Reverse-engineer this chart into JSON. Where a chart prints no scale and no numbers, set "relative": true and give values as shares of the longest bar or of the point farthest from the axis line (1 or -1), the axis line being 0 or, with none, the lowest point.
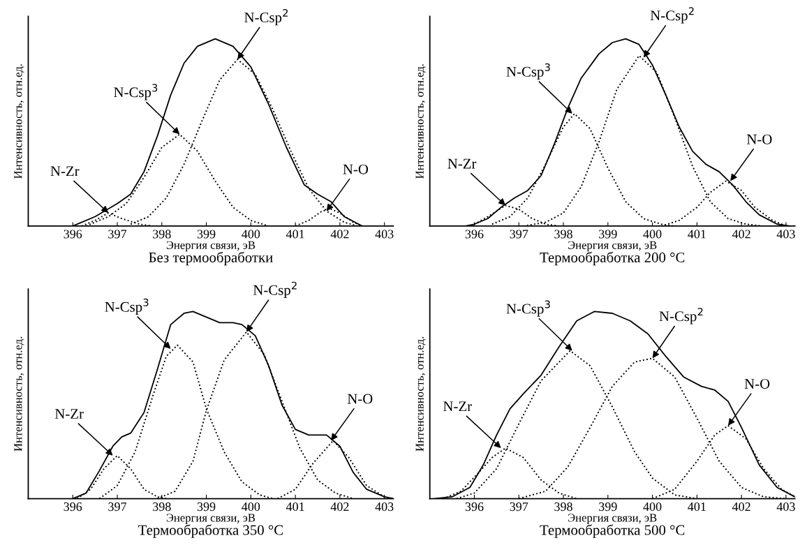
{
  "chart_data": [
    {
      "type": "line",
      "title": "Без термообработки",
      "xlabel": "Энергия связи, эВ",
      "ylabel": "Интенсивность, отн.ед.",
      "relative": true,
      "xlim": [
        395,
        403.2
      ],
      "xticks": [
        396,
        397,
        398,
        399,
        400,
        401,
        402,
        403
      ],
      "tick_labels": "x",
      "grid": false,
      "marker": "none",
      "series": [
        {
          "color": "#000000",
          "line_style": "solid",
          "x": [
            396.0,
            396.5,
            397.0,
            397.3,
            397.6,
            397.9,
            398.2,
            398.5,
            398.8,
            399.2,
            399.6,
            400.0,
            400.4,
            400.8,
            401.2,
            401.5,
            401.8,
            402.1,
            402.5
          ],
          "values": [
            0,
            0.05,
            0.12,
            0.17,
            0.29,
            0.48,
            0.7,
            0.87,
            0.96,
            1.0,
            0.96,
            0.85,
            0.65,
            0.42,
            0.22,
            0.17,
            0.13,
            0.05,
            0
          ]
        },
        {
          "color": "#000000",
          "line_style": "dotted",
          "x": [
            396.2,
            396.5,
            396.8,
            397.1,
            397.5,
            397.8
          ],
          "values": [
            0,
            0.03,
            0.07,
            0.04,
            0.01,
            0
          ]
        },
        {
          "color": "#000000",
          "line_style": "dotted",
          "x": [
            396.3,
            396.8,
            397.2,
            397.6,
            398.0,
            398.4,
            398.8,
            399.2,
            399.6,
            400.0,
            400.4
          ],
          "values": [
            0,
            0.05,
            0.12,
            0.26,
            0.42,
            0.49,
            0.4,
            0.24,
            0.1,
            0.03,
            0
          ]
        },
        {
          "color": "#000000",
          "line_style": "dotted",
          "x": [
            397.3,
            397.7,
            398.1,
            398.5,
            398.9,
            399.3,
            399.7,
            400.1,
            400.5,
            400.9,
            401.3,
            401.7,
            402.1,
            402.4
          ],
          "values": [
            0.01,
            0.05,
            0.15,
            0.33,
            0.56,
            0.78,
            0.89,
            0.81,
            0.62,
            0.4,
            0.2,
            0.08,
            0.02,
            0
          ]
        },
        {
          "color": "#000000",
          "line_style": "dotted",
          "x": [
            401.0,
            401.3,
            401.6,
            401.8,
            402.0,
            402.3,
            402.5
          ],
          "values": [
            0,
            0.03,
            0.08,
            0.09,
            0.07,
            0.02,
            0
          ]
        }
      ],
      "annotations": [
        {
          "text": "N-Zr",
          "x": 396.8,
          "y": 0.07
        },
        {
          "text": "N-Csp$^{3}$",
          "x": 398.4,
          "y": 0.49
        },
        {
          "text": "N-Csp$^{2}$",
          "x": 399.7,
          "y": 0.89
        },
        {
          "text": "N-O",
          "x": 401.7,
          "y": 0.08
        }
      ]
    },
    {
      "type": "line",
      "title": "Термообработка 200 °C",
      "xlabel": "Энергия связи, эВ",
      "ylabel": "Интенсивность, отн.ед.",
      "relative": true,
      "xlim": [
        395,
        403.2
      ],
      "xticks": [
        396,
        397,
        398,
        399,
        400,
        401,
        402,
        403
      ],
      "tick_labels": "x",
      "grid": false,
      "marker": "none",
      "series": [
        {
          "color": "#000000",
          "line_style": "solid",
          "x": [
            395.8,
            396.0,
            396.3,
            396.6,
            396.9,
            397.2,
            397.5,
            397.8,
            398.1,
            398.4,
            398.8,
            399.1,
            399.4,
            399.7,
            400.0,
            400.3,
            400.6,
            400.9,
            401.2,
            401.5,
            401.8,
            402.1,
            402.4,
            402.8,
            403.1
          ],
          "values": [
            0,
            0.01,
            0.04,
            0.1,
            0.15,
            0.19,
            0.27,
            0.44,
            0.63,
            0.79,
            0.92,
            0.98,
            1.0,
            0.97,
            0.86,
            0.7,
            0.53,
            0.4,
            0.33,
            0.29,
            0.22,
            0.13,
            0.06,
            0.01,
            0
          ]
        },
        {
          "color": "#000000",
          "line_style": "dotted",
          "x": [
            396.0,
            396.3,
            396.7,
            397.0,
            397.3,
            397.6,
            397.9
          ],
          "values": [
            0.01,
            0.05,
            0.11,
            0.09,
            0.04,
            0.01,
            0
          ]
        },
        {
          "color": "#000000",
          "line_style": "dotted",
          "x": [
            396.4,
            396.8,
            397.2,
            397.6,
            398.0,
            398.25,
            398.6,
            399.0,
            399.4,
            399.8,
            400.2,
            400.5
          ],
          "values": [
            0.01,
            0.05,
            0.15,
            0.33,
            0.53,
            0.6,
            0.52,
            0.31,
            0.13,
            0.04,
            0.01,
            0
          ]
        },
        {
          "color": "#000000",
          "line_style": "dotted",
          "x": [
            397.1,
            397.6,
            398.0,
            398.4,
            398.8,
            399.2,
            399.7,
            400.1,
            400.5,
            400.9,
            401.3,
            401.7,
            402.1,
            402.5
          ],
          "values": [
            0,
            0.02,
            0.07,
            0.21,
            0.45,
            0.73,
            0.91,
            0.82,
            0.58,
            0.32,
            0.13,
            0.04,
            0.01,
            0
          ]
        },
        {
          "color": "#000000",
          "line_style": "dotted",
          "x": [
            400.2,
            400.6,
            401.0,
            401.3,
            401.65,
            402.0,
            402.3,
            402.7,
            403.0
          ],
          "values": [
            0,
            0.03,
            0.1,
            0.18,
            0.24,
            0.19,
            0.1,
            0.03,
            0
          ]
        }
      ],
      "annotations": [
        {
          "text": "N-Zr",
          "x": 396.7,
          "y": 0.11
        },
        {
          "text": "N-Csp$^{3}$",
          "x": 398.2,
          "y": 0.6
        },
        {
          "text": "N-Csp$^{2}$",
          "x": 399.8,
          "y": 0.9
        },
        {
          "text": "N-O",
          "x": 401.75,
          "y": 0.24
        }
      ]
    },
    {
      "type": "line",
      "title": "Термообработка 350 °C",
      "xlabel": "Энергия связи, эВ",
      "ylabel": "Интенсивность, отн.ед.",
      "relative": true,
      "xlim": [
        395,
        403.2
      ],
      "xticks": [
        396,
        397,
        398,
        399,
        400,
        401,
        402,
        403
      ],
      "tick_labels": "x",
      "grid": false,
      "marker": "none",
      "series": [
        {
          "color": "#000000",
          "line_style": "solid",
          "x": [
            396.0,
            396.3,
            396.6,
            396.9,
            397.1,
            397.3,
            397.6,
            397.9,
            398.2,
            398.5,
            398.7,
            399.0,
            399.3,
            399.6,
            399.8,
            400.1,
            400.4,
            400.7,
            401.0,
            401.3,
            401.7,
            402.0,
            402.3,
            402.6,
            403.0,
            403.2
          ],
          "values": [
            0,
            0.03,
            0.15,
            0.28,
            0.33,
            0.35,
            0.46,
            0.69,
            0.93,
            0.99,
            1.0,
            0.97,
            0.94,
            0.94,
            0.93,
            0.87,
            0.71,
            0.5,
            0.37,
            0.34,
            0.34,
            0.28,
            0.14,
            0.05,
            0.01,
            0
          ]
        },
        {
          "color": "#000000",
          "line_style": "dotted",
          "x": [
            396.1,
            396.4,
            396.7,
            397.0,
            397.3,
            397.6,
            397.9,
            398.1
          ],
          "values": [
            0,
            0.05,
            0.16,
            0.23,
            0.16,
            0.05,
            0.01,
            0
          ]
        },
        {
          "color": "#000000",
          "line_style": "dotted",
          "x": [
            396.6,
            397.0,
            397.4,
            397.8,
            398.1,
            398.35,
            398.7,
            399.0,
            399.4,
            399.8,
            400.2,
            400.5
          ],
          "values": [
            0,
            0.07,
            0.25,
            0.55,
            0.76,
            0.82,
            0.73,
            0.48,
            0.25,
            0.09,
            0.02,
            0
          ]
        },
        {
          "color": "#000000",
          "line_style": "dotted",
          "x": [
            397.9,
            398.3,
            398.7,
            399.0,
            399.4,
            399.9,
            400.3,
            400.7,
            401.1,
            401.5,
            401.9,
            402.3
          ],
          "values": [
            0,
            0.04,
            0.2,
            0.47,
            0.74,
            0.89,
            0.77,
            0.52,
            0.27,
            0.1,
            0.03,
            0
          ]
        },
        {
          "color": "#000000",
          "line_style": "dotted",
          "x": [
            400.6,
            401.0,
            401.4,
            401.85,
            402.2,
            402.6,
            403.0,
            403.2
          ],
          "values": [
            0,
            0.05,
            0.19,
            0.31,
            0.22,
            0.07,
            0.01,
            0
          ]
        }
      ],
      "annotations": [
        {
          "text": "N-Zr",
          "x": 396.9,
          "y": 0.23
        },
        {
          "text": "N-Csp$^{3}$",
          "x": 398.2,
          "y": 0.8
        },
        {
          "text": "N-Csp$^{2}$",
          "x": 399.9,
          "y": 0.89
        },
        {
          "text": "N-O",
          "x": 401.8,
          "y": 0.31
        }
      ]
    },
    {
      "type": "line",
      "title": "Термообработка 500 °C",
      "xlabel": "Энергия связи, эВ",
      "ylabel": "Интенсивность, отн.ед.",
      "relative": true,
      "xlim": [
        395,
        403.2
      ],
      "xticks": [
        396,
        397,
        398,
        399,
        400,
        401,
        402,
        403
      ],
      "tick_labels": "x",
      "grid": false,
      "marker": "none",
      "series": [
        {
          "color": "#000000",
          "line_style": "solid",
          "x": [
            395.1,
            395.5,
            395.9,
            396.2,
            396.5,
            396.8,
            397.1,
            397.5,
            397.9,
            398.3,
            398.7,
            399.1,
            399.5,
            399.9,
            400.3,
            400.7,
            401.1,
            401.4,
            401.7,
            402.0,
            402.4,
            402.8,
            403.2
          ],
          "values": [
            0,
            0.01,
            0.06,
            0.18,
            0.34,
            0.48,
            0.56,
            0.66,
            0.81,
            0.95,
            1.0,
            0.99,
            0.95,
            0.88,
            0.76,
            0.65,
            0.6,
            0.58,
            0.52,
            0.38,
            0.18,
            0.06,
            0.01
          ]
        },
        {
          "color": "#000000",
          "line_style": "dotted",
          "x": [
            395.3,
            395.7,
            396.1,
            396.4,
            396.7,
            397.1,
            397.5,
            397.9,
            398.3
          ],
          "values": [
            0,
            0.04,
            0.14,
            0.22,
            0.27,
            0.22,
            0.1,
            0.03,
            0
          ]
        },
        {
          "color": "#000000",
          "line_style": "dotted",
          "x": [
            395.6,
            396.0,
            396.5,
            397.0,
            397.5,
            398.15,
            398.6,
            399.1,
            399.6,
            400.0,
            400.5,
            401.0
          ],
          "values": [
            0,
            0.03,
            0.16,
            0.4,
            0.63,
            0.79,
            0.71,
            0.49,
            0.25,
            0.11,
            0.02,
            0
          ]
        },
        {
          "color": "#000000",
          "line_style": "dotted",
          "x": [
            397.0,
            397.6,
            398.1,
            398.6,
            399.1,
            399.6,
            400.0,
            400.5,
            401.0,
            401.5,
            402.0,
            402.5,
            403.0
          ],
          "values": [
            0,
            0.04,
            0.17,
            0.38,
            0.6,
            0.73,
            0.75,
            0.65,
            0.43,
            0.2,
            0.06,
            0.01,
            0
          ]
        },
        {
          "color": "#000000",
          "line_style": "dotted",
          "x": [
            400.0,
            400.5,
            401.0,
            401.4,
            401.7,
            402.1,
            402.5,
            402.9,
            403.2
          ],
          "values": [
            0,
            0.05,
            0.2,
            0.34,
            0.39,
            0.32,
            0.16,
            0.05,
            0.01
          ]
        }
      ],
      "annotations": [
        {
          "text": "N-Zr",
          "x": 396.6,
          "y": 0.27
        },
        {
          "text": "N-Csp$^{3}$",
          "x": 398.2,
          "y": 0.79
        },
        {
          "text": "N-Csp$^{2}$",
          "x": 400.0,
          "y": 0.75
        },
        {
          "text": "N-O",
          "x": 401.7,
          "y": 0.39
        }
      ]
    }
  ]
}
